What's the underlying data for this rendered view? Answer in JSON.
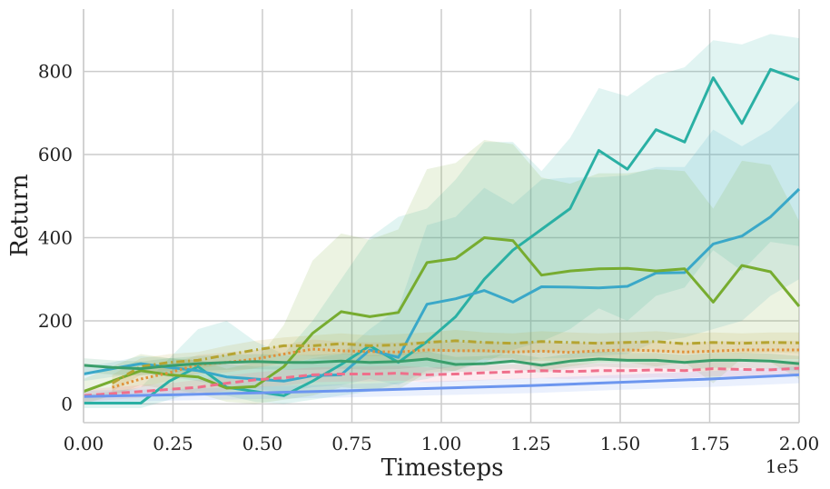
{
  "chart_data": {
    "type": "line",
    "title": "",
    "xlabel": "Timesteps",
    "ylabel": "Return",
    "x_multiplier_label": "1e5",
    "xlim": [
      0,
      2.0
    ],
    "ylim": [
      -45,
      950
    ],
    "xticks": [
      "0.00",
      "0.25",
      "0.50",
      "0.75",
      "1.00",
      "1.25",
      "1.50",
      "1.75",
      "2.00"
    ],
    "xtick_values": [
      0,
      0.25,
      0.5,
      0.75,
      1.0,
      1.25,
      1.5,
      1.75,
      2.0
    ],
    "yticks": [
      "0",
      "200",
      "400",
      "600",
      "800"
    ],
    "ytick_values": [
      0,
      200,
      400,
      600,
      800
    ],
    "grid": true,
    "legend": "none",
    "series": [
      {
        "color": "#2ab0a4",
        "dash": "solid",
        "x": [
          0,
          0.08,
          0.16,
          0.24,
          0.32,
          0.4,
          0.48,
          0.56,
          0.64,
          0.72,
          0.8,
          0.88,
          0.96,
          1.04,
          1.12,
          1.2,
          1.28,
          1.36,
          1.44,
          1.52,
          1.6,
          1.68,
          1.76,
          1.84,
          1.92,
          2.0
        ],
        "y": [
          2,
          2,
          2,
          55,
          90,
          40,
          30,
          20,
          55,
          95,
          140,
          100,
          150,
          210,
          300,
          370,
          420,
          470,
          610,
          565,
          660,
          630,
          785,
          675,
          805,
          780
        ],
        "upper": [
          20,
          30,
          40,
          110,
          180,
          200,
          150,
          120,
          200,
          300,
          400,
          450,
          470,
          540,
          630,
          630,
          560,
          640,
          760,
          740,
          790,
          810,
          875,
          865,
          890,
          880
        ],
        "lower": [
          -10,
          -10,
          -10,
          10,
          30,
          20,
          5,
          0,
          10,
          20,
          30,
          50,
          60,
          80,
          100,
          130,
          150,
          180,
          230,
          200,
          260,
          280,
          370,
          320,
          390,
          380
        ]
      },
      {
        "color": "#3aa8c8",
        "dash": "solid",
        "x": [
          0,
          0.08,
          0.16,
          0.24,
          0.32,
          0.4,
          0.48,
          0.56,
          0.64,
          0.72,
          0.8,
          0.88,
          0.96,
          1.04,
          1.12,
          1.2,
          1.28,
          1.36,
          1.44,
          1.52,
          1.6,
          1.68,
          1.76,
          1.84,
          1.92,
          2.0
        ],
        "y": [
          72,
          85,
          97,
          88,
          80,
          65,
          60,
          55,
          68,
          70,
          130,
          112,
          240,
          253,
          273,
          245,
          282,
          281,
          279,
          283,
          315,
          316,
          385,
          404,
          450,
          517
        ],
        "upper": [
          90,
          100,
          115,
          110,
          105,
          95,
          90,
          90,
          110,
          120,
          180,
          230,
          430,
          450,
          520,
          480,
          540,
          545,
          545,
          550,
          570,
          570,
          660,
          620,
          660,
          730
        ],
        "lower": [
          55,
          65,
          75,
          65,
          55,
          40,
          35,
          30,
          40,
          45,
          60,
          45,
          80,
          90,
          100,
          100,
          110,
          110,
          115,
          120,
          150,
          160,
          180,
          200,
          260,
          300
        ]
      },
      {
        "color": "#77ac30",
        "dash": "solid",
        "x": [
          0,
          0.08,
          0.16,
          0.24,
          0.32,
          0.4,
          0.48,
          0.56,
          0.64,
          0.72,
          0.8,
          0.88,
          0.96,
          1.04,
          1.12,
          1.2,
          1.28,
          1.36,
          1.44,
          1.52,
          1.6,
          1.68,
          1.76,
          1.84,
          1.92,
          2.0
        ],
        "y": [
          30,
          55,
          80,
          70,
          65,
          38,
          42,
          90,
          170,
          222,
          210,
          220,
          340,
          350,
          400,
          393,
          310,
          320,
          325,
          326,
          320,
          325,
          245,
          333,
          318,
          235
        ],
        "upper": [
          60,
          90,
          120,
          110,
          105,
          85,
          100,
          190,
          345,
          410,
          395,
          420,
          565,
          580,
          635,
          625,
          545,
          530,
          555,
          555,
          565,
          560,
          470,
          585,
          575,
          440
        ],
        "lower": [
          0,
          20,
          45,
          35,
          25,
          5,
          0,
          10,
          20,
          40,
          35,
          35,
          75,
          80,
          110,
          110,
          80,
          90,
          100,
          100,
          90,
          100,
          50,
          110,
          100,
          60
        ]
      },
      {
        "color": "#b5a431",
        "dash": "dashdot",
        "x": [
          0.08,
          0.16,
          0.24,
          0.32,
          0.4,
          0.48,
          0.56,
          0.64,
          0.72,
          0.8,
          0.88,
          0.96,
          1.04,
          1.12,
          1.2,
          1.28,
          1.36,
          1.44,
          1.52,
          1.6,
          1.68,
          1.76,
          1.84,
          1.92,
          2.0
        ],
        "y": [
          50,
          90,
          100,
          105,
          118,
          130,
          140,
          140,
          145,
          140,
          142,
          148,
          152,
          148,
          146,
          150,
          148,
          146,
          148,
          150,
          145,
          148,
          146,
          148,
          147
        ],
        "upper": [
          70,
          110,
          120,
          125,
          140,
          152,
          160,
          165,
          170,
          165,
          168,
          172,
          178,
          172,
          170,
          175,
          172,
          170,
          172,
          175,
          170,
          172,
          170,
          172,
          172
        ],
        "lower": [
          30,
          70,
          80,
          85,
          96,
          108,
          120,
          115,
          120,
          115,
          116,
          124,
          126,
          124,
          122,
          125,
          124,
          122,
          124,
          125,
          120,
          124,
          122,
          124,
          122
        ]
      },
      {
        "color": "#e0913a",
        "dash": "dotted",
        "x": [
          0.08,
          0.16,
          0.24,
          0.32,
          0.4,
          0.48,
          0.56,
          0.64,
          0.72,
          0.8,
          0.88,
          0.96,
          1.04,
          1.12,
          1.2,
          1.28,
          1.36,
          1.44,
          1.52,
          1.6,
          1.68,
          1.76,
          1.84,
          1.92,
          2.0
        ],
        "y": [
          40,
          60,
          75,
          95,
          100,
          108,
          120,
          132,
          128,
          126,
          125,
          130,
          128,
          128,
          125,
          127,
          124,
          128,
          130,
          128,
          125,
          127,
          130,
          130,
          130
        ],
        "upper": [
          60,
          80,
          95,
          118,
          124,
          130,
          142,
          155,
          150,
          148,
          148,
          152,
          150,
          150,
          148,
          150,
          146,
          150,
          152,
          150,
          148,
          150,
          152,
          152,
          152
        ],
        "lower": [
          20,
          40,
          55,
          72,
          76,
          86,
          98,
          109,
          106,
          104,
          102,
          108,
          106,
          106,
          102,
          104,
          102,
          106,
          108,
          106,
          102,
          104,
          108,
          108,
          108
        ]
      },
      {
        "color": "#3a9e6b",
        "dash": "solid",
        "x": [
          0,
          0.08,
          0.16,
          0.24,
          0.32,
          0.4,
          0.48,
          0.56,
          0.64,
          0.72,
          0.8,
          0.88,
          0.96,
          1.04,
          1.12,
          1.2,
          1.28,
          1.36,
          1.44,
          1.52,
          1.6,
          1.68,
          1.76,
          1.84,
          1.92,
          2.0
        ],
        "y": [
          93,
          88,
          85,
          92,
          97,
          100,
          102,
          100,
          100,
          103,
          100,
          102,
          108,
          95,
          97,
          103,
          93,
          103,
          108,
          105,
          105,
          100,
          105,
          105,
          103,
          97
        ],
        "upper": [
          110,
          105,
          102,
          110,
          115,
          118,
          120,
          118,
          118,
          121,
          118,
          120,
          126,
          113,
          115,
          121,
          111,
          121,
          126,
          123,
          123,
          118,
          123,
          123,
          121,
          115
        ],
        "lower": [
          76,
          71,
          68,
          74,
          79,
          82,
          84,
          82,
          82,
          85,
          82,
          84,
          90,
          77,
          79,
          85,
          75,
          85,
          90,
          87,
          87,
          82,
          87,
          87,
          85,
          79
        ]
      },
      {
        "color": "#ef6f8b",
        "dash": "dashed",
        "x": [
          0,
          0.08,
          0.16,
          0.24,
          0.32,
          0.4,
          0.48,
          0.56,
          0.64,
          0.72,
          0.8,
          0.88,
          0.96,
          1.04,
          1.12,
          1.2,
          1.28,
          1.36,
          1.44,
          1.52,
          1.6,
          1.68,
          1.76,
          1.84,
          1.92,
          2.0
        ],
        "y": [
          20,
          25,
          30,
          35,
          40,
          50,
          58,
          63,
          70,
          72,
          72,
          74,
          70,
          72,
          75,
          77,
          80,
          78,
          80,
          80,
          82,
          80,
          85,
          83,
          82,
          86
        ],
        "upper": [
          35,
          40,
          45,
          50,
          58,
          68,
          76,
          82,
          88,
          90,
          90,
          92,
          88,
          90,
          93,
          95,
          98,
          96,
          98,
          98,
          100,
          98,
          103,
          101,
          100,
          104
        ],
        "lower": [
          5,
          10,
          15,
          20,
          22,
          32,
          40,
          44,
          52,
          54,
          54,
          56,
          52,
          54,
          57,
          59,
          62,
          60,
          62,
          62,
          64,
          62,
          67,
          65,
          64,
          68
        ]
      },
      {
        "color": "#6c96ef",
        "dash": "solid",
        "x": [
          0,
          0.25,
          0.5,
          0.75,
          1.0,
          1.25,
          1.5,
          1.75,
          2.0
        ],
        "y": [
          18,
          22,
          27,
          32,
          38,
          44,
          52,
          60,
          70
        ],
        "upper": [
          32,
          36,
          42,
          48,
          55,
          62,
          70,
          79,
          90
        ],
        "lower": [
          4,
          8,
          12,
          16,
          21,
          26,
          34,
          41,
          50
        ]
      }
    ]
  }
}
